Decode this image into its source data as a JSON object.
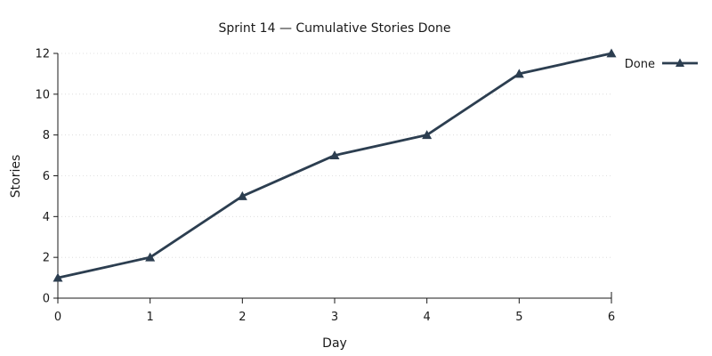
{
  "chart_data": {
    "type": "line",
    "title": "Sprint 14 — Cumulative Stories Done",
    "xlabel": "Day",
    "ylabel": "Stories",
    "x": [
      0,
      1,
      2,
      3,
      4,
      5,
      6
    ],
    "series": [
      {
        "name": "Done",
        "values": [
          1,
          2,
          5,
          7,
          8,
          11,
          12
        ],
        "color": "#2c3e50",
        "marker": "triangle"
      }
    ],
    "xlim": [
      0,
      6
    ],
    "ylim": [
      0,
      12
    ],
    "xticks": [
      "0",
      "1",
      "2",
      "3",
      "4",
      "5",
      "6"
    ],
    "yticks": [
      "0",
      "2",
      "4",
      "6",
      "8",
      "10",
      "12"
    ],
    "grid": true,
    "legend_position": "top-right"
  }
}
